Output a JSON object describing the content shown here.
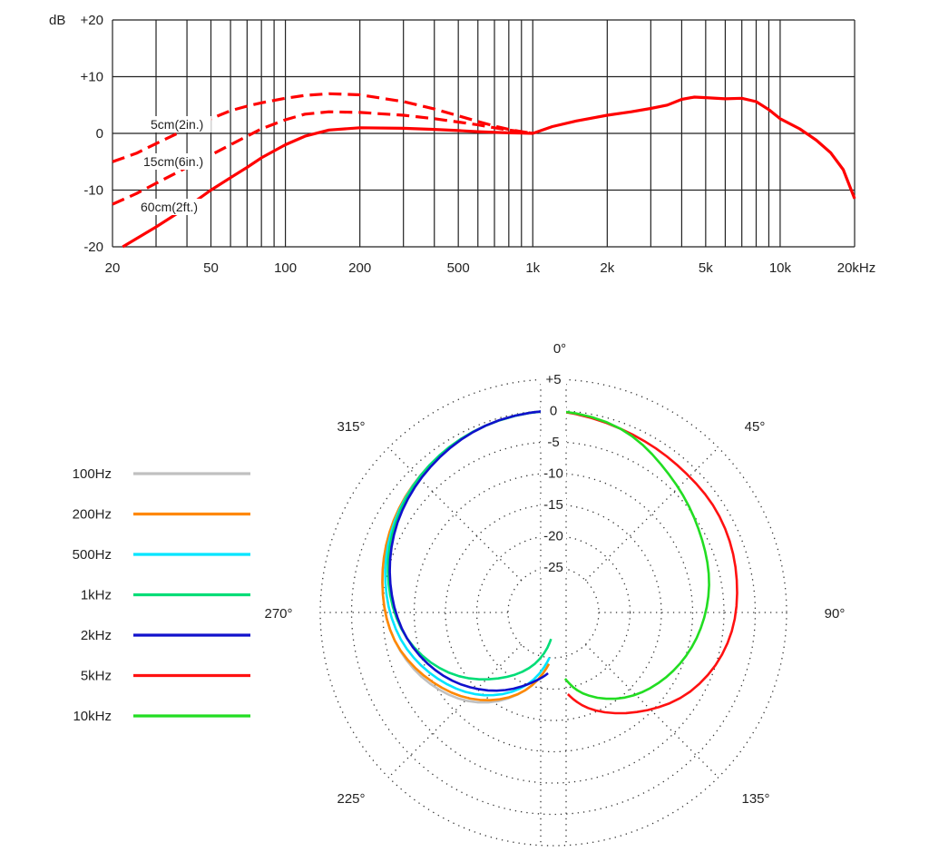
{
  "chart_data": [
    {
      "type": "line",
      "scale_x": "log",
      "xlim": [
        20,
        20000
      ],
      "ylim": [
        -20,
        20
      ],
      "grid": true,
      "ylabel": "dB",
      "y_ticks": [
        {
          "v": 20,
          "label": "+20"
        },
        {
          "v": 10,
          "label": "+10"
        },
        {
          "v": 0,
          "label": "0"
        },
        {
          "v": -10,
          "label": "-10"
        },
        {
          "v": -20,
          "label": "-20"
        }
      ],
      "x_ticks": [
        {
          "v": 20,
          "label": "20"
        },
        {
          "v": 50,
          "label": "50"
        },
        {
          "v": 100,
          "label": "100"
        },
        {
          "v": 200,
          "label": "200"
        },
        {
          "v": 500,
          "label": "500"
        },
        {
          "v": 1000,
          "label": "1k"
        },
        {
          "v": 2000,
          "label": "2k"
        },
        {
          "v": 5000,
          "label": "5k"
        },
        {
          "v": 10000,
          "label": "10k"
        },
        {
          "v": 20000,
          "label": "20kHz"
        }
      ],
      "x_gridlines": [
        20,
        30,
        40,
        50,
        60,
        70,
        80,
        90,
        100,
        200,
        300,
        400,
        500,
        600,
        700,
        800,
        900,
        1000,
        2000,
        3000,
        4000,
        5000,
        6000,
        7000,
        8000,
        9000,
        10000,
        20000
      ],
      "color": "#ff0000",
      "series": [
        {
          "name": "",
          "style": "solid",
          "points": [
            [
              1000,
              0
            ],
            [
              1200,
              1.2
            ],
            [
              1500,
              2.2
            ],
            [
              2000,
              3.2
            ],
            [
              2500,
              3.8
            ],
            [
              3000,
              4.4
            ],
            [
              3500,
              5.0
            ],
            [
              4000,
              6.0
            ],
            [
              4500,
              6.4
            ],
            [
              5000,
              6.3
            ],
            [
              6000,
              6.1
            ],
            [
              7000,
              6.2
            ],
            [
              8000,
              5.6
            ],
            [
              9000,
              4.2
            ],
            [
              10000,
              2.6
            ],
            [
              12000,
              0.8
            ],
            [
              14000,
              -1.2
            ],
            [
              16000,
              -3.4
            ],
            [
              18000,
              -6.4
            ],
            [
              20000,
              -11.5
            ]
          ]
        },
        {
          "name": "5cm(2in.)",
          "style": "dashed",
          "points": [
            [
              20,
              -5
            ],
            [
              25,
              -3.5
            ],
            [
              30,
              -1.8
            ],
            [
              40,
              0.8
            ],
            [
              50,
              2.6
            ],
            [
              60,
              4
            ],
            [
              70,
              4.8
            ],
            [
              80,
              5.4
            ],
            [
              100,
              6.2
            ],
            [
              120,
              6.7
            ],
            [
              150,
              7
            ],
            [
              200,
              6.8
            ],
            [
              300,
              5.6
            ],
            [
              400,
              4.3
            ],
            [
              500,
              3.1
            ],
            [
              600,
              2.1
            ],
            [
              700,
              1.3
            ],
            [
              800,
              0.7
            ],
            [
              900,
              0.3
            ],
            [
              1000,
              0
            ]
          ]
        },
        {
          "name": "15cm(6in.)",
          "style": "dashed",
          "points": [
            [
              20,
              -12.5
            ],
            [
              25,
              -10.6
            ],
            [
              30,
              -8.8
            ],
            [
              40,
              -6
            ],
            [
              50,
              -3.8
            ],
            [
              60,
              -2
            ],
            [
              70,
              -0.5
            ],
            [
              80,
              0.8
            ],
            [
              100,
              2.4
            ],
            [
              120,
              3.4
            ],
            [
              150,
              3.8
            ],
            [
              200,
              3.7
            ],
            [
              300,
              3.2
            ],
            [
              400,
              2.6
            ],
            [
              500,
              2
            ],
            [
              600,
              1.5
            ],
            [
              700,
              1
            ],
            [
              800,
              0.6
            ],
            [
              900,
              0.3
            ],
            [
              1000,
              0
            ]
          ]
        },
        {
          "name": "60cm(2ft.)",
          "style": "solid",
          "points": [
            [
              22,
              -20
            ],
            [
              30,
              -16.5
            ],
            [
              40,
              -13
            ],
            [
              50,
              -10
            ],
            [
              60,
              -7.8
            ],
            [
              70,
              -6
            ],
            [
              80,
              -4.3
            ],
            [
              100,
              -2
            ],
            [
              120,
              -0.5
            ],
            [
              150,
              0.6
            ],
            [
              200,
              1
            ],
            [
              300,
              0.9
            ],
            [
              400,
              0.7
            ],
            [
              500,
              0.5
            ],
            [
              600,
              0.3
            ],
            [
              700,
              0.2
            ],
            [
              800,
              0.1
            ],
            [
              900,
              0.05
            ],
            [
              1000,
              0
            ]
          ]
        }
      ]
    },
    {
      "type": "polar",
      "rlim": [
        -30,
        5
      ],
      "radial_labels": [
        "+5",
        "0",
        "-5",
        "-10",
        "-15",
        "-20",
        "-25"
      ],
      "angle_labels": [
        {
          "deg": 0,
          "label": "0°"
        },
        {
          "deg": 45,
          "label": "45°"
        },
        {
          "deg": 90,
          "label": "90°"
        },
        {
          "deg": 135,
          "label": "135°"
        },
        {
          "deg": 225,
          "label": "225°"
        },
        {
          "deg": 270,
          "label": "270°"
        },
        {
          "deg": 315,
          "label": "315°"
        }
      ],
      "legend": [
        {
          "label": "100Hz",
          "color": "#c0c0c0"
        },
        {
          "label": "200Hz",
          "color": "#ff8800"
        },
        {
          "label": "500Hz",
          "color": "#00e5ff"
        },
        {
          "label": "1kHz",
          "color": "#00dd77"
        },
        {
          "label": "2kHz",
          "color": "#1111cc"
        },
        {
          "label": "5kHz",
          "color": "#ff1111"
        },
        {
          "label": "10kHz",
          "color": "#22dd22"
        }
      ],
      "series": [
        {
          "name": "100Hz",
          "color": "#c0c0c0",
          "points": [
            [
              0,
              0
            ],
            [
              20,
              -0.5
            ],
            [
              40,
              -1.5
            ],
            [
              60,
              -2.8
            ],
            [
              80,
              -4.5
            ],
            [
              100,
              -6.5
            ],
            [
              120,
              -9.5
            ],
            [
              140,
              -13.5
            ],
            [
              160,
              -19
            ],
            [
              175,
              -24
            ]
          ]
        },
        {
          "name": "200Hz",
          "color": "#ff8800",
          "points": [
            [
              0,
              0
            ],
            [
              20,
              -0.5
            ],
            [
              40,
              -1.5
            ],
            [
              60,
              -2.8
            ],
            [
              80,
              -4.5
            ],
            [
              100,
              -6.5
            ],
            [
              120,
              -10
            ],
            [
              140,
              -14
            ],
            [
              160,
              -19
            ],
            [
              175,
              -24
            ]
          ]
        },
        {
          "name": "500Hz",
          "color": "#00e5ff",
          "points": [
            [
              0,
              0
            ],
            [
              20,
              -0.5
            ],
            [
              40,
              -1.5
            ],
            [
              60,
              -3
            ],
            [
              80,
              -5
            ],
            [
              100,
              -7.5
            ],
            [
              120,
              -11
            ],
            [
              140,
              -15
            ],
            [
              160,
              -20
            ],
            [
              175,
              -25
            ]
          ]
        },
        {
          "name": "1kHz",
          "color": "#00dd77",
          "points": [
            [
              0,
              0
            ],
            [
              20,
              -0.5
            ],
            [
              40,
              -1.5
            ],
            [
              60,
              -3.2
            ],
            [
              80,
              -5.5
            ],
            [
              100,
              -8.5
            ],
            [
              120,
              -13
            ],
            [
              140,
              -18.5
            ],
            [
              160,
              -23.5
            ],
            [
              175,
              -28
            ]
          ]
        },
        {
          "name": "2kHz",
          "color": "#1111cc",
          "points": [
            [
              0,
              0
            ],
            [
              20,
              -0.5
            ],
            [
              40,
              -1.8
            ],
            [
              60,
              -3.5
            ],
            [
              80,
              -5.8
            ],
            [
              100,
              -8.5
            ],
            [
              120,
              -12
            ],
            [
              140,
              -16
            ],
            [
              160,
              -20
            ],
            [
              175,
              -22.5
            ]
          ]
        },
        {
          "name": "5kHz",
          "color": "#ff1111",
          "points": [
            [
              0,
              0
            ],
            [
              20,
              -1
            ],
            [
              40,
              -1.5
            ],
            [
              60,
              -1.6
            ],
            [
              80,
              -2.5
            ],
            [
              100,
              -4
            ],
            [
              120,
              -7
            ],
            [
              140,
              -11.5
            ],
            [
              160,
              -16
            ],
            [
              170,
              -19
            ]
          ]
        },
        {
          "name": "10kHz",
          "color": "#22dd22",
          "points": [
            [
              0,
              0
            ],
            [
              20,
              -1
            ],
            [
              40,
              -3.5
            ],
            [
              60,
              -5.5
            ],
            [
              80,
              -7
            ],
            [
              100,
              -9
            ],
            [
              120,
              -11.5
            ],
            [
              140,
              -14.5
            ],
            [
              160,
              -18.5
            ],
            [
              170,
              -21.5
            ]
          ]
        }
      ]
    }
  ]
}
